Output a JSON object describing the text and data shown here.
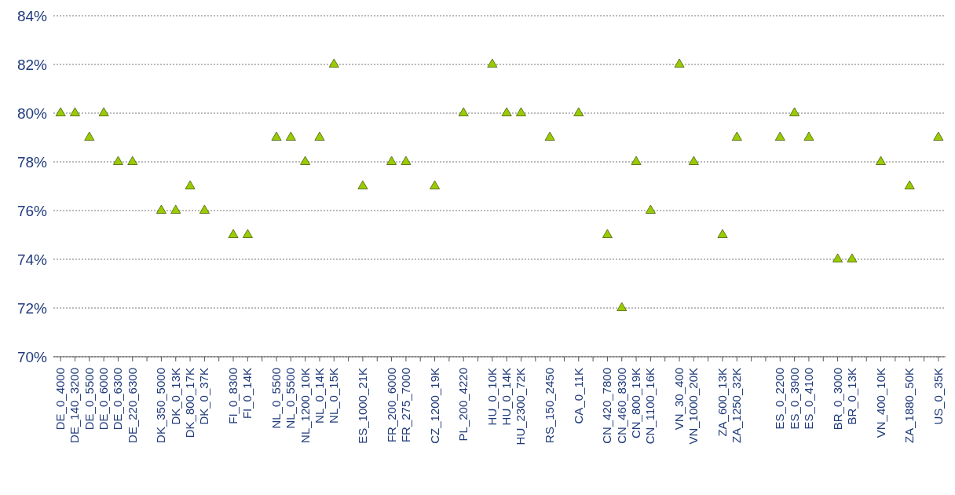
{
  "chart_data": {
    "type": "scatter",
    "categories": [
      "DE_0_4000",
      "DE_140_3200",
      "DE_0_5500",
      "DE_0_6000",
      "DE_0_6300",
      "DE_220_6300",
      null,
      "DK_350_5000",
      "DK_0_13K",
      "DK_800_17K",
      "DK_0_37K",
      null,
      "FI_0_8300",
      "FI_0_14K",
      null,
      "NL_0_5500",
      "NL_0_5500",
      "NL_1200_10K",
      "NL_0_14K",
      "NL_0_15K",
      null,
      "ES_1000_21K",
      null,
      "FR_200_6000",
      "FR_275_7000",
      null,
      "CZ_1200_19K",
      null,
      "PL_200_4220",
      null,
      "HU_0_10K",
      "HU_0_14K",
      "HU_2300_72K",
      null,
      "RS_150_2450",
      null,
      "CA_0_11K",
      null,
      "CN_420_7800",
      "CN_460_8300",
      "CN_800_19K",
      "CN_1100_16K",
      null,
      "VN_30_400",
      "VN_1000_20K",
      null,
      "ZA_600_13K",
      "ZA_1250_32K",
      null,
      null,
      "ES_0_2200",
      "ES_0_3900",
      "ES_0_4100",
      null,
      "BR_0_3000",
      "BR_0_13K",
      null,
      "VN_400_10K",
      null,
      "ZA_1880_50K",
      null,
      "US_0_35K"
    ],
    "series": [
      {
        "color": "#99cc00",
        "values": [
          80,
          80,
          79,
          80,
          78,
          78,
          null,
          76,
          76,
          77,
          76,
          null,
          75,
          75,
          null,
          79,
          79,
          78,
          79,
          82,
          null,
          77,
          null,
          78,
          78,
          null,
          77,
          null,
          80,
          null,
          82,
          80,
          80,
          null,
          79,
          null,
          80,
          null,
          75,
          72,
          78,
          76,
          null,
          82,
          78,
          null,
          75,
          79,
          null,
          null,
          79,
          80,
          79,
          null,
          74,
          74,
          null,
          78,
          null,
          77,
          null,
          79
        ]
      }
    ],
    "ylim": [
      70,
      84
    ],
    "yticks": [
      {
        "value": 70,
        "label": "70%"
      },
      {
        "value": 72,
        "label": "72%"
      },
      {
        "value": 74,
        "label": "74%"
      },
      {
        "value": 76,
        "label": "76%"
      },
      {
        "value": 78,
        "label": "78%"
      },
      {
        "value": 80,
        "label": "80%"
      },
      {
        "value": 82,
        "label": "82%"
      },
      {
        "value": 84,
        "label": "84%"
      }
    ],
    "grid": "y",
    "marker": "triangle"
  }
}
